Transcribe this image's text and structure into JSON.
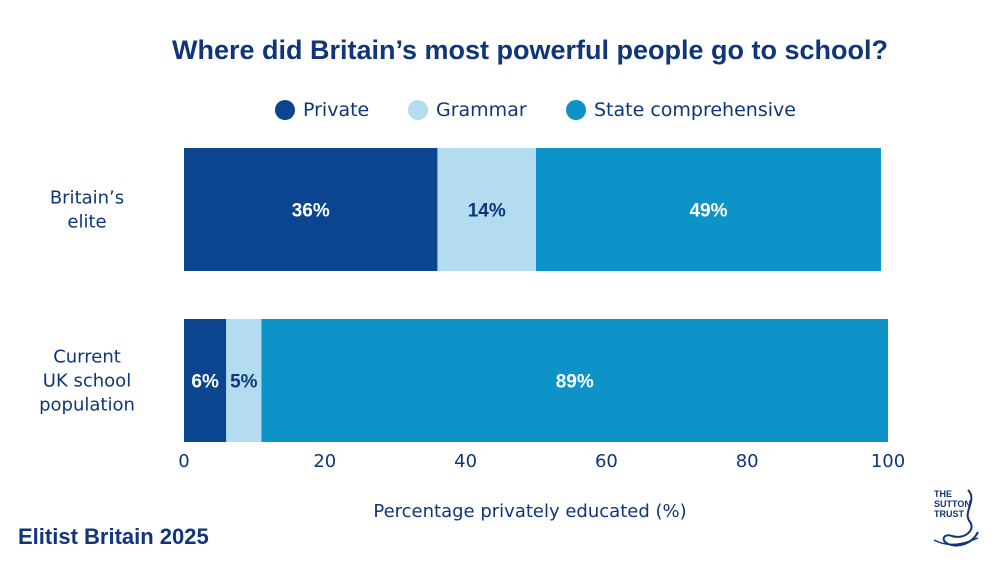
{
  "chart_data": {
    "type": "bar",
    "orientation": "horizontal",
    "stacked": true,
    "title": "Where did Britain’s most powerful people go to school?",
    "categories": [
      [
        "Britain’s",
        "elite"
      ],
      [
        "Current",
        "UK school",
        "population"
      ]
    ],
    "series": [
      {
        "name": "Private",
        "color": "#0b4590",
        "label_color": "#ffffff",
        "values": [
          36,
          6
        ],
        "labels": [
          "36%",
          "6%"
        ]
      },
      {
        "name": "Grammar",
        "color": "#b3dcf0",
        "label_color": "#10357a",
        "values": [
          14,
          5
        ],
        "labels": [
          "14%",
          "5%"
        ]
      },
      {
        "name": "State comprehensive",
        "color": "#0e93c9",
        "label_color": "#ffffff",
        "values": [
          49,
          89
        ],
        "labels": [
          "49%",
          "89%"
        ]
      }
    ],
    "xlim": [
      0,
      100
    ],
    "xticks": [
      "0",
      "20",
      "40",
      "60",
      "80",
      "100"
    ],
    "xlabel": "Percentage privately educated (%)",
    "legend_position": "top-center",
    "grid": false
  },
  "footer": {
    "source_title": "Elitist Britain 2025"
  },
  "logo": {
    "lines": [
      "THE",
      "SUTTON",
      "TRUST"
    ]
  }
}
